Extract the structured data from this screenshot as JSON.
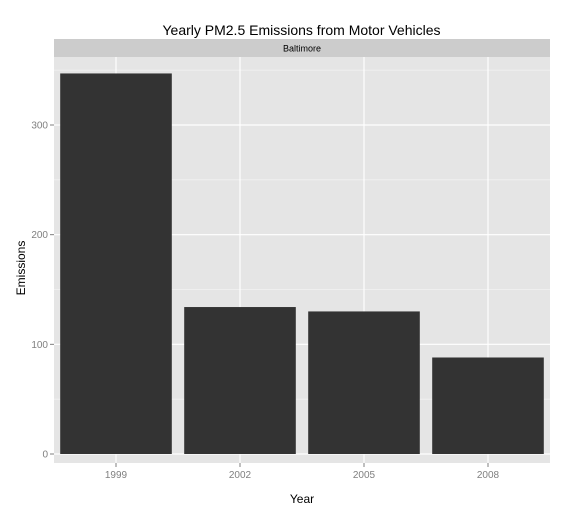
{
  "chart_data": {
    "type": "bar",
    "title": "Yearly PM2.5 Emissions from Motor Vehicles",
    "facet": "Baltimore",
    "xlabel": "Year",
    "ylabel": "Emissions",
    "categories": [
      "1999",
      "2002",
      "2005",
      "2008"
    ],
    "values": [
      347,
      134,
      130,
      88
    ],
    "ylim": [
      0,
      362
    ],
    "yticks": [
      0,
      100,
      200,
      300
    ],
    "grid": true,
    "colors": {
      "bar": "#333333",
      "panel": "#e5e5e5",
      "grid_major": "#ffffff",
      "grid_minor": "#f2f2f2",
      "strip": "#cccccc",
      "tick_text": "#7f7f7f"
    }
  }
}
